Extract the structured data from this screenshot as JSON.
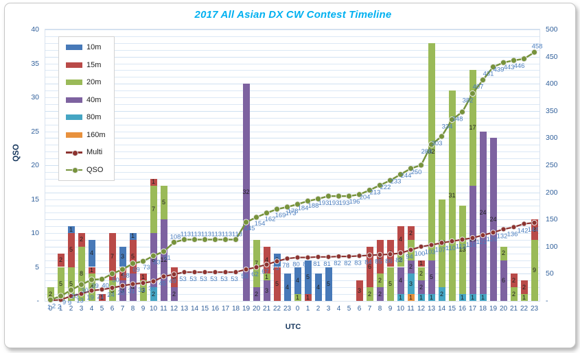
{
  "title": "2017 All Asian DX CW Contest Timeline",
  "chart_data": {
    "type": "combo-stacked-bar-line",
    "title": "2017 All Asian DX CW Contest Timeline",
    "xlabel": "UTC",
    "ylabel_left": "QSO",
    "legend_position": "top-left-vertical",
    "grid": true,
    "categories": [
      "0",
      "1",
      "2",
      "3",
      "4",
      "5",
      "6",
      "7",
      "8",
      "9",
      "10",
      "11",
      "12",
      "13",
      "14",
      "15",
      "16",
      "17",
      "18",
      "19",
      "20",
      "21",
      "22",
      "23",
      "0",
      "1",
      "2",
      "3",
      "4",
      "5",
      "6",
      "7",
      "8",
      "9",
      "10",
      "11",
      "12",
      "13",
      "14",
      "15",
      "16",
      "17",
      "18",
      "19",
      "20",
      "21",
      "22",
      "23"
    ],
    "axes": {
      "left": {
        "title": "QSO",
        "min": 0,
        "max": 40,
        "tick_step": 5,
        "tick_labels": [
          "-",
          "5",
          "10",
          "15",
          "20",
          "25",
          "30",
          "35",
          "40"
        ]
      },
      "right": {
        "min": 0,
        "max": 500,
        "tick_step": 50,
        "tick_labels": [
          "-",
          "50",
          "100",
          "150",
          "200",
          "250",
          "300",
          "350",
          "400",
          "450",
          "500"
        ]
      }
    },
    "bar_stack_order_bottom_to_top": [
      "160m",
      "80m",
      "40m",
      "20m",
      "15m",
      "10m"
    ],
    "bar_series": [
      {
        "name": "10m",
        "color": "#4779B8",
        "values": [
          0,
          0,
          1,
          0,
          4,
          0,
          0,
          3,
          1,
          0,
          0,
          0,
          0,
          0,
          0,
          0,
          0,
          0,
          0,
          0,
          0,
          0,
          2,
          4,
          4,
          5,
          4,
          5,
          0,
          0,
          0,
          0,
          0,
          0,
          0,
          0,
          0,
          0,
          0,
          0,
          0,
          0,
          0,
          0,
          0,
          0,
          0,
          0
        ]
      },
      {
        "name": "15m",
        "color": "#B94A48",
        "values": [
          0,
          2,
          5,
          2,
          1,
          1,
          7,
          2,
          5,
          1,
          1,
          0,
          3,
          0,
          0,
          0,
          0,
          0,
          0,
          0,
          0,
          4,
          5,
          0,
          0,
          1,
          0,
          0,
          0,
          0,
          3,
          6,
          5,
          4,
          4,
          2,
          1,
          0,
          0,
          0,
          0,
          0,
          0,
          0,
          0,
          2,
          2,
          3
        ]
      },
      {
        "name": "20m",
        "color": "#9ABA58",
        "values": [
          2,
          5,
          5,
          8,
          4,
          0,
          3,
          0,
          0,
          3,
          7,
          5,
          0,
          0,
          0,
          0,
          0,
          0,
          0,
          0,
          7,
          1,
          0,
          0,
          1,
          0,
          0,
          0,
          0,
          0,
          0,
          2,
          2,
          5,
          2,
          3,
          2,
          32,
          13,
          31,
          13,
          17,
          0,
          0,
          2,
          2,
          1,
          9
        ]
      },
      {
        "name": "40m",
        "color": "#7D62A0",
        "values": [
          0,
          0,
          0,
          0,
          0,
          0,
          0,
          3,
          4,
          0,
          8,
          12,
          2,
          0,
          0,
          0,
          0,
          0,
          0,
          32,
          2,
          3,
          0,
          0,
          0,
          0,
          0,
          0,
          0,
          0,
          0,
          0,
          2,
          0,
          4,
          2,
          2,
          5,
          0,
          0,
          0,
          16,
          24,
          24,
          6,
          0,
          0,
          0
        ]
      },
      {
        "name": "80m",
        "color": "#45A5C3",
        "values": [
          0,
          0,
          0,
          0,
          0,
          0,
          0,
          0,
          0,
          0,
          2,
          0,
          0,
          0,
          0,
          0,
          0,
          0,
          0,
          0,
          0,
          0,
          0,
          0,
          0,
          0,
          0,
          0,
          0,
          0,
          0,
          0,
          0,
          0,
          1,
          3,
          1,
          1,
          2,
          0,
          1,
          1,
          1,
          0,
          0,
          0,
          0,
          0
        ]
      },
      {
        "name": "160m",
        "color": "#E8913D",
        "values": [
          0,
          0,
          0,
          0,
          0,
          0,
          0,
          0,
          0,
          0,
          0,
          0,
          0,
          0,
          0,
          0,
          0,
          0,
          0,
          0,
          0,
          0,
          0,
          0,
          0,
          0,
          0,
          0,
          0,
          0,
          0,
          0,
          0,
          0,
          0,
          1,
          0,
          0,
          0,
          0,
          0,
          0,
          0,
          0,
          0,
          0,
          0,
          0
        ]
      }
    ],
    "line_series": [
      {
        "name": "Multi",
        "axis": "right",
        "color": "#8C3330",
        "marker_color": "#8C3330",
        "values": [
          1,
          2,
          9,
          13,
          19,
          21,
          24,
          28,
          31,
          33,
          36,
          45,
          49,
          53,
          53,
          53,
          53,
          53,
          53,
          58,
          62,
          67,
          73,
          78,
          80,
          80,
          81,
          81,
          82,
          82,
          83,
          84,
          85,
          86,
          88,
          94,
          100,
          103,
          107,
          110,
          113,
          116,
          121,
          126,
          132,
          136,
          142,
          144
        ]
      },
      {
        "name": "QSO",
        "axis": "right",
        "color": "#77933C",
        "marker_color": "#77933C",
        "values": [
          2,
          9,
          20,
          30,
          39,
          40,
          50,
          58,
          69,
          73,
          83,
          91,
          108,
          113,
          113,
          113,
          113,
          113,
          113,
          145,
          154,
          162,
          169,
          173,
          178,
          184,
          188,
          193,
          193,
          193,
          196,
          204,
          213,
          222,
          233,
          244,
          250,
          288,
          303,
          334,
          348,
          382,
          407,
          431,
          439,
          443,
          446,
          458
        ]
      }
    ],
    "data_label_color": "#4A7DBE"
  },
  "legend": {
    "items": [
      {
        "label": "10m",
        "kind": "swatch",
        "color": "#4779B8"
      },
      {
        "label": "15m",
        "kind": "swatch",
        "color": "#B94A48"
      },
      {
        "label": "20m",
        "kind": "swatch",
        "color": "#9ABA58"
      },
      {
        "label": "40m",
        "kind": "swatch",
        "color": "#7D62A0"
      },
      {
        "label": "80m",
        "kind": "swatch",
        "color": "#45A5C3"
      },
      {
        "label": "160m",
        "kind": "swatch",
        "color": "#E8913D"
      },
      {
        "label": "Multi",
        "kind": "line",
        "color": "#8C3330"
      },
      {
        "label": "QSO",
        "kind": "line",
        "color": "#77933C"
      }
    ]
  }
}
